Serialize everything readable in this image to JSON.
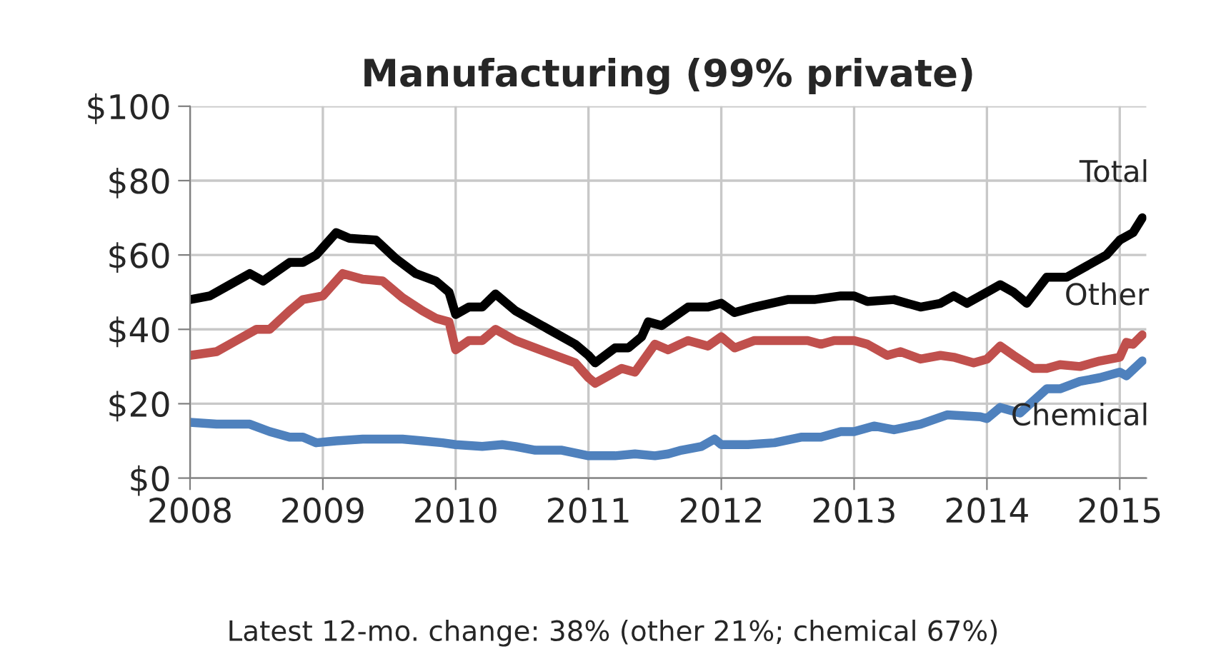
{
  "chart_data": {
    "type": "line",
    "title": "Manufacturing (99% private)",
    "annotations": [
      "Latest 12-mo. change: 38% (other 21%; chemical 67%)"
    ],
    "xlim": [
      2008,
      2015.2
    ],
    "xticks": [
      2008,
      2009,
      2010,
      2011,
      2012,
      2013,
      2014,
      2015
    ],
    "ylim": [
      0,
      100
    ],
    "yticks": [
      {
        "value": 0,
        "label": "$0"
      },
      {
        "value": 20,
        "label": "$20"
      },
      {
        "value": 40,
        "label": "$40"
      },
      {
        "value": 60,
        "label": "$60"
      },
      {
        "value": 80,
        "label": "$80"
      },
      {
        "value": 100,
        "label": "$100"
      }
    ],
    "grid": true,
    "legend": false,
    "marker": "none",
    "line_style": "solid",
    "series": [
      {
        "name": "Total",
        "color": "#000000",
        "x": [
          2008.0,
          2008.15,
          2008.3,
          2008.45,
          2008.55,
          2008.75,
          2008.85,
          2008.95,
          2009.1,
          2009.2,
          2009.4,
          2009.55,
          2009.7,
          2009.85,
          2009.95,
          2010.0,
          2010.1,
          2010.2,
          2010.3,
          2010.45,
          2010.6,
          2010.75,
          2010.9,
          2011.0,
          2011.05,
          2011.2,
          2011.3,
          2011.4,
          2011.45,
          2011.55,
          2011.75,
          2011.9,
          2012.0,
          2012.1,
          2012.25,
          2012.5,
          2012.7,
          2012.9,
          2013.0,
          2013.1,
          2013.3,
          2013.5,
          2013.65,
          2013.75,
          2013.85,
          2014.0,
          2014.1,
          2014.2,
          2014.3,
          2014.45,
          2014.6,
          2014.75,
          2014.9,
          2015.0,
          2015.1,
          2015.17
        ],
        "values": [
          48,
          49,
          52,
          55,
          53,
          58,
          58,
          60,
          66,
          64.5,
          64,
          59,
          55,
          53,
          50,
          44,
          46,
          46,
          49.5,
          45,
          42,
          39,
          36,
          33,
          31,
          35,
          35,
          38,
          42,
          41,
          46,
          46,
          47,
          44.5,
          46,
          48,
          48,
          49,
          49,
          47.5,
          48,
          46,
          47,
          49,
          47,
          50,
          52,
          50,
          47,
          54,
          54,
          57,
          60,
          64,
          66,
          70
        ]
      },
      {
        "name": "Other",
        "color": "#c0504d",
        "x": [
          2008.0,
          2008.2,
          2008.35,
          2008.5,
          2008.6,
          2008.75,
          2008.85,
          2009.0,
          2009.15,
          2009.3,
          2009.45,
          2009.6,
          2009.75,
          2009.85,
          2009.95,
          2010.0,
          2010.1,
          2010.2,
          2010.3,
          2010.45,
          2010.6,
          2010.75,
          2010.9,
          2011.0,
          2011.05,
          2011.25,
          2011.35,
          2011.5,
          2011.6,
          2011.75,
          2011.9,
          2012.0,
          2012.1,
          2012.25,
          2012.5,
          2012.65,
          2012.75,
          2012.85,
          2013.0,
          2013.1,
          2013.25,
          2013.35,
          2013.5,
          2013.65,
          2013.75,
          2013.9,
          2014.0,
          2014.1,
          2014.2,
          2014.35,
          2014.45,
          2014.55,
          2014.7,
          2014.85,
          2015.0,
          2015.05,
          2015.1,
          2015.17
        ],
        "values": [
          33,
          34,
          37,
          40,
          40,
          45,
          48,
          49,
          55,
          53.5,
          53,
          48.5,
          45,
          43,
          42,
          34.5,
          37,
          37,
          40,
          37,
          35,
          33,
          31,
          27,
          25.5,
          29.5,
          28.5,
          36,
          34.5,
          37,
          35.5,
          38,
          35,
          37,
          37,
          37,
          36,
          37,
          37,
          36,
          33,
          34,
          32,
          33,
          32.5,
          31,
          32,
          35.5,
          33,
          29.5,
          29.5,
          30.5,
          30,
          31.5,
          32.5,
          36.5,
          36,
          38.5
        ]
      },
      {
        "name": "Chemical",
        "color": "#4f81bd",
        "x": [
          2008.0,
          2008.2,
          2008.45,
          2008.6,
          2008.75,
          2008.85,
          2008.95,
          2009.1,
          2009.3,
          2009.6,
          2009.75,
          2009.9,
          2010.0,
          2010.2,
          2010.35,
          2010.45,
          2010.6,
          2010.8,
          2011.0,
          2011.2,
          2011.35,
          2011.5,
          2011.6,
          2011.7,
          2011.85,
          2011.95,
          2012.0,
          2012.2,
          2012.4,
          2012.6,
          2012.75,
          2012.9,
          2013.0,
          2013.15,
          2013.3,
          2013.5,
          2013.7,
          2013.95,
          2014.0,
          2014.1,
          2014.25,
          2014.45,
          2014.55,
          2014.7,
          2014.85,
          2015.0,
          2015.05,
          2015.17
        ],
        "values": [
          15,
          14.5,
          14.5,
          12.5,
          11,
          11,
          9.5,
          10,
          10.5,
          10.5,
          10,
          9.5,
          9,
          8.5,
          9,
          8.5,
          7.5,
          7.5,
          6,
          6,
          6.5,
          6,
          6.5,
          7.5,
          8.5,
          10.5,
          9,
          9,
          9.5,
          11,
          11,
          12.5,
          12.5,
          14,
          13,
          14.5,
          17,
          16.5,
          16,
          19,
          17.5,
          24,
          24,
          26,
          27,
          28.5,
          27.5,
          31.5
        ]
      }
    ]
  }
}
